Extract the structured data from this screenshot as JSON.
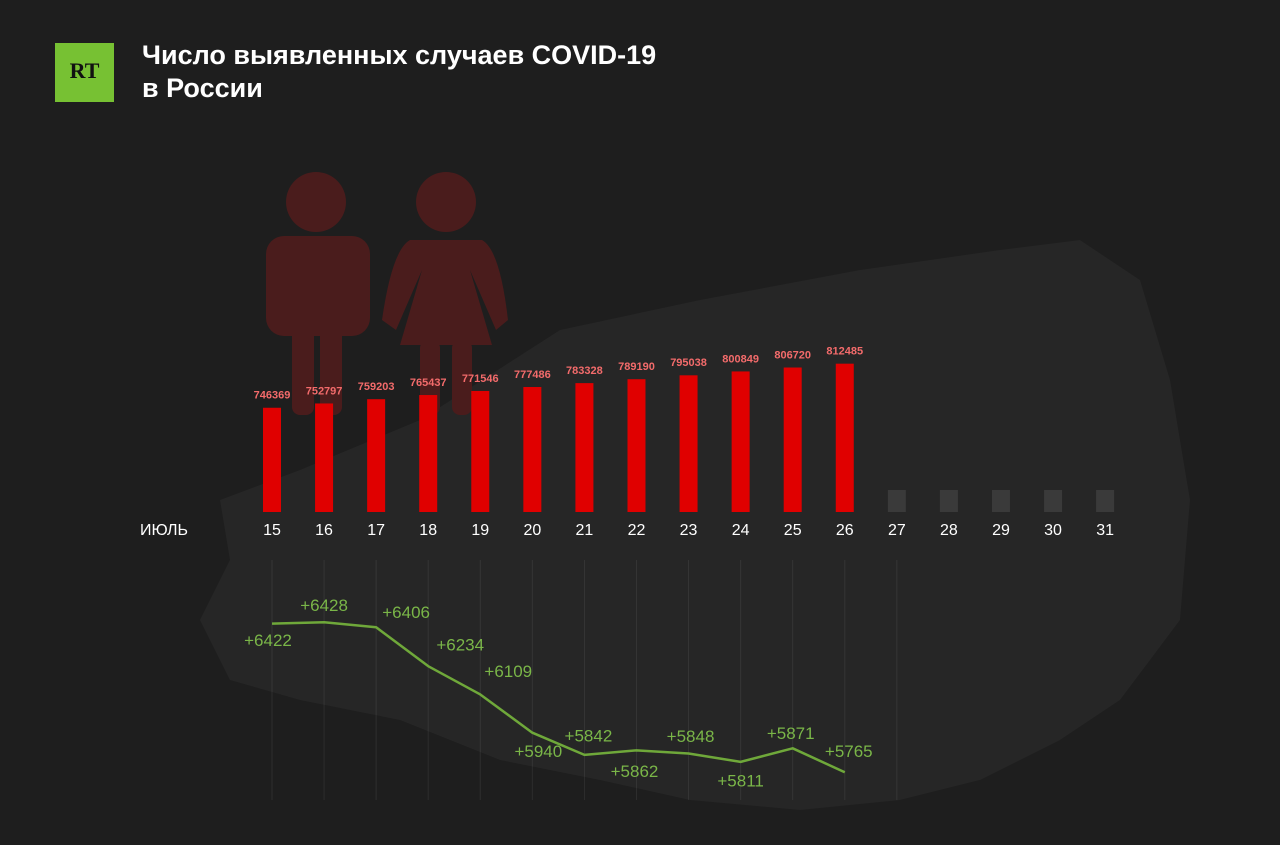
{
  "logo": "RT",
  "chart_data": {
    "type": "bar",
    "title": [
      "Число выявленных случаев COVID-19",
      "в России"
    ],
    "xlabel": "ИЮЛЬ",
    "categories": [
      "15",
      "16",
      "17",
      "18",
      "19",
      "20",
      "21",
      "22",
      "23",
      "24",
      "25",
      "26",
      "27",
      "28",
      "29",
      "30",
      "31"
    ],
    "values": [
      746369,
      752797,
      759203,
      765437,
      771546,
      777486,
      783328,
      789190,
      795038,
      800849,
      806720,
      812485,
      null,
      null,
      null,
      null,
      null
    ],
    "color": "#e00000",
    "ylim": [
      590000,
      830000
    ],
    "line": {
      "type": "line",
      "axis": "y2",
      "color": "#6fa83a",
      "values": [
        6422,
        6428,
        6406,
        6234,
        6109,
        5940,
        5842,
        5862,
        5848,
        5811,
        5871,
        5765,
        null,
        null,
        null,
        null,
        null
      ],
      "value_labels": [
        "+6422",
        "+6428",
        "+6406",
        "+6234",
        "+6109",
        "+5940",
        "+5842",
        "+5862",
        "+5848",
        "+5811",
        "+5871",
        "+5765",
        null,
        null,
        null,
        null,
        null
      ]
    },
    "y2lim": [
      5700,
      6500
    ]
  }
}
